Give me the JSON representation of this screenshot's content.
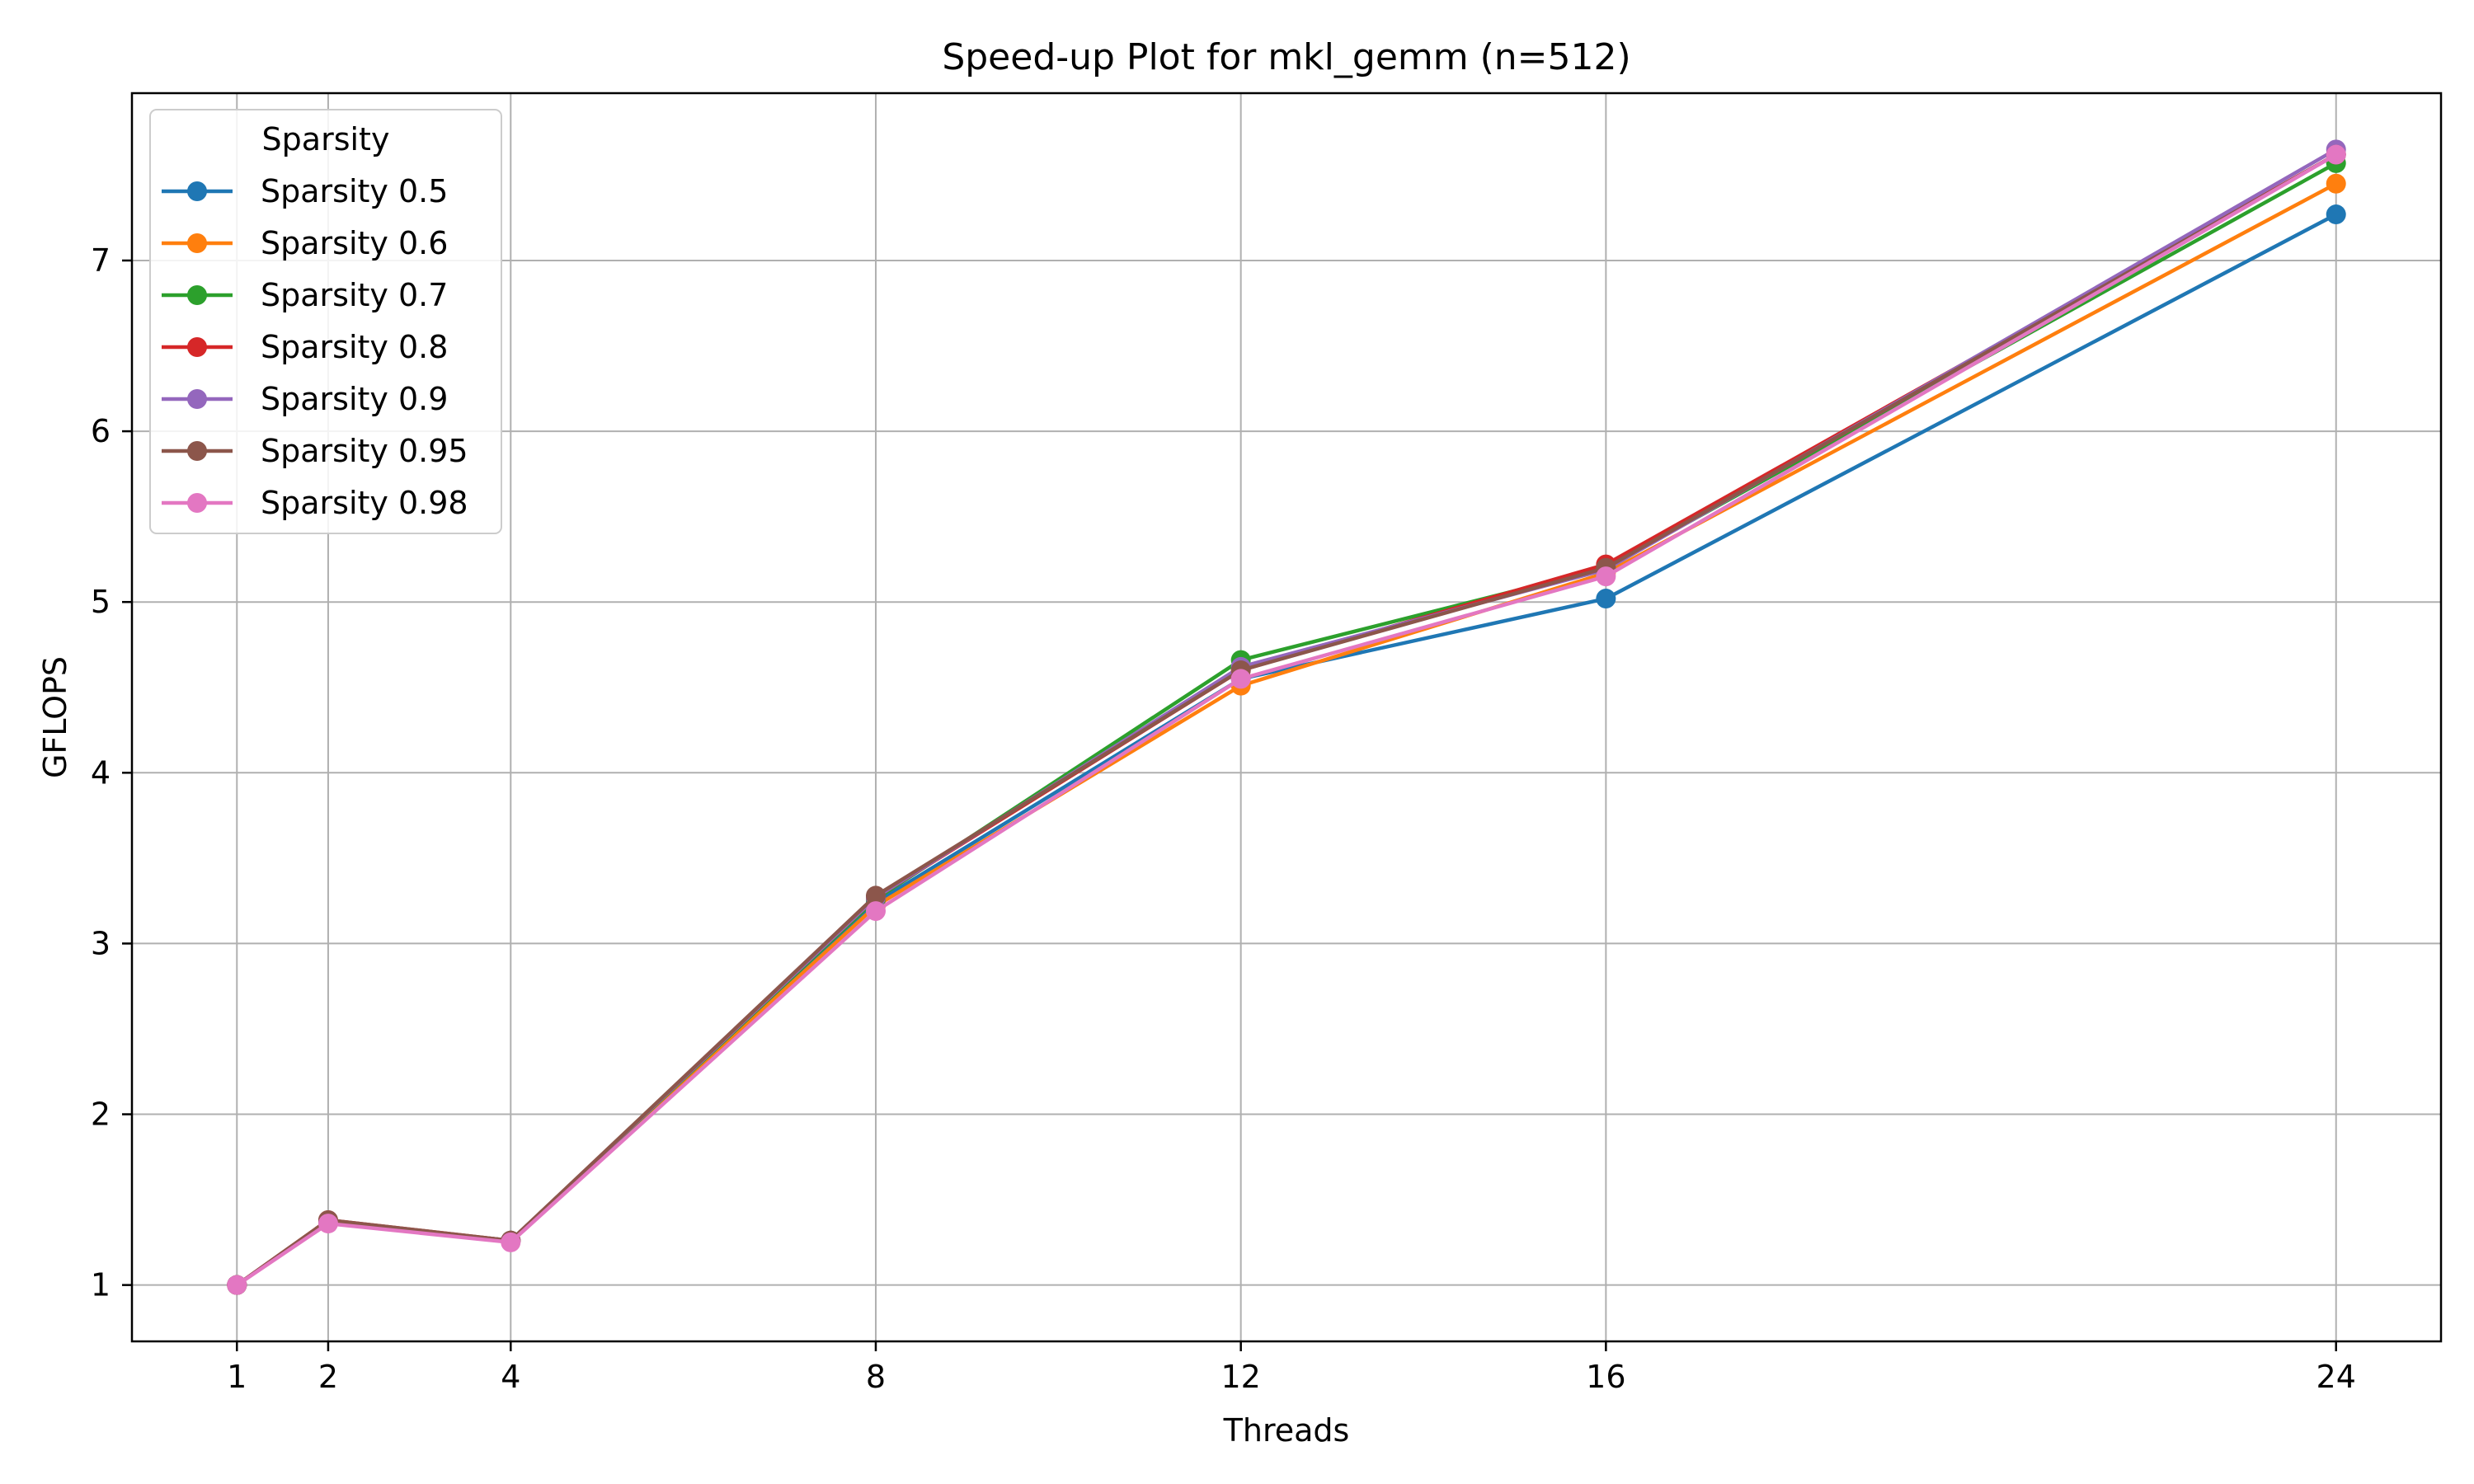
{
  "chart_data": {
    "type": "line",
    "title": "Speed-up Plot for mkl_gemm (n=512)",
    "xlabel": "Threads",
    "ylabel": "GFLOPS",
    "x": [
      1,
      2,
      4,
      8,
      12,
      16,
      24
    ],
    "xticks": [
      1,
      2,
      4,
      8,
      12,
      16,
      24
    ],
    "yticks": [
      1,
      2,
      3,
      4,
      5,
      6,
      7
    ],
    "xlim": [
      -0.15,
      25.15
    ],
    "ylim": [
      0.67,
      7.98
    ],
    "grid": true,
    "marker": "circle",
    "legend": {
      "title": "Sparsity",
      "placement": "upper-left"
    },
    "series": [
      {
        "name": "Sparsity 0.5",
        "color": "#1f77b4",
        "values": [
          1.0,
          1.37,
          1.26,
          3.24,
          4.55,
          5.02,
          7.27
        ]
      },
      {
        "name": "Sparsity 0.6",
        "color": "#ff7f0e",
        "values": [
          1.0,
          1.37,
          1.26,
          3.22,
          4.51,
          5.17,
          7.45
        ]
      },
      {
        "name": "Sparsity 0.7",
        "color": "#2ca02c",
        "values": [
          1.0,
          1.37,
          1.26,
          3.26,
          4.66,
          5.2,
          7.57
        ]
      },
      {
        "name": "Sparsity 0.8",
        "color": "#d62728",
        "values": [
          1.0,
          1.38,
          1.26,
          3.27,
          4.6,
          5.22,
          7.62
        ]
      },
      {
        "name": "Sparsity 0.9",
        "color": "#9467bd",
        "values": [
          1.0,
          1.37,
          1.26,
          3.27,
          4.62,
          5.19,
          7.65
        ]
      },
      {
        "name": "Sparsity 0.95",
        "color": "#8c564b",
        "values": [
          1.0,
          1.38,
          1.26,
          3.28,
          4.6,
          5.2,
          7.62
        ]
      },
      {
        "name": "Sparsity 0.98",
        "color": "#e377c2",
        "values": [
          1.0,
          1.36,
          1.25,
          3.19,
          4.55,
          5.15,
          7.62
        ]
      }
    ]
  }
}
